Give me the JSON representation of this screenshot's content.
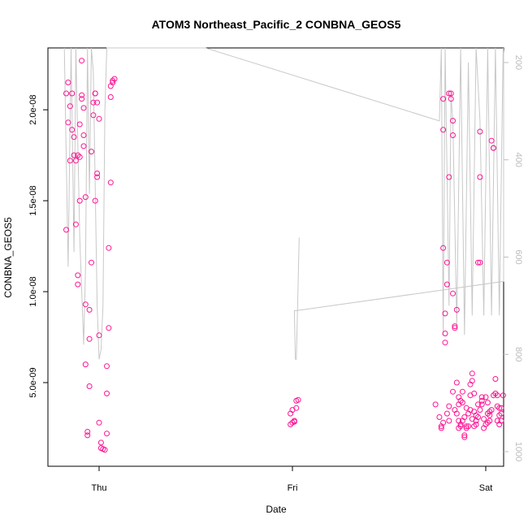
{
  "chart_data": {
    "type": "scatter",
    "title": "ATOM3 Northeast_Pacific_2 CONBNA_GEOS5",
    "xlabel": "Date",
    "ylabel": "CONBNA_GEOS5",
    "x_ticks": [
      "Thu",
      "Fri",
      "Sat"
    ],
    "y_ticks": [
      "5.0e-09",
      "1.0e-08",
      "1.5e-08",
      "2.0e-08"
    ],
    "y_tick_values": [
      5e-09,
      1e-08,
      1.5e-08,
      2e-08
    ],
    "ylim": [
      4e-10,
      2.34e-08
    ],
    "right_axis_ticks": [
      "200",
      "400",
      "600",
      "800",
      "1000"
    ],
    "right_axis_values": [
      200,
      400,
      600,
      800,
      1000
    ],
    "right_axis_range_inverted": [
      1030,
      170
    ],
    "grid": false,
    "series": [
      {
        "kind": "points",
        "color": "#ff1493",
        "points": [
          [
            -0.17,
            13.4
          ],
          [
            -0.17,
            20.9
          ],
          [
            -0.16,
            21.5
          ],
          [
            -0.16,
            19.3
          ],
          [
            -0.15,
            20.2
          ],
          [
            -0.15,
            17.2
          ],
          [
            -0.14,
            20.9
          ],
          [
            -0.14,
            18.9
          ],
          [
            -0.13,
            18.5
          ],
          [
            -0.13,
            17.5
          ],
          [
            -0.12,
            17.2
          ],
          [
            -0.12,
            13.7
          ],
          [
            -0.11,
            17.5
          ],
          [
            -0.11,
            10.9
          ],
          [
            -0.11,
            10.4
          ],
          [
            -0.1,
            15.0
          ],
          [
            -0.1,
            17.4
          ],
          [
            -0.1,
            19.2
          ],
          [
            -0.09,
            20.6
          ],
          [
            -0.09,
            20.8
          ],
          [
            -0.09,
            22.7
          ],
          [
            -0.08,
            20.1
          ],
          [
            -0.08,
            18.6
          ],
          [
            -0.08,
            18.0
          ],
          [
            -0.07,
            15.2
          ],
          [
            -0.07,
            9.3
          ],
          [
            -0.07,
            6.0
          ],
          [
            -0.06,
            2.3
          ],
          [
            -0.06,
            2.1
          ],
          [
            -0.05,
            4.8
          ],
          [
            -0.05,
            7.4
          ],
          [
            -0.05,
            9.0
          ],
          [
            -0.04,
            11.6
          ],
          [
            -0.04,
            17.7
          ],
          [
            -0.03,
            19.7
          ],
          [
            -0.03,
            20.4
          ],
          [
            -0.02,
            20.9
          ],
          [
            -0.02,
            20.9
          ],
          [
            -0.02,
            15.0
          ],
          [
            -0.01,
            16.5
          ],
          [
            -0.01,
            16.3
          ],
          [
            -0.01,
            20.4
          ],
          [
            0.0,
            19.5
          ],
          [
            0.0,
            7.6
          ],
          [
            0.0,
            2.8
          ],
          [
            0.01,
            1.7
          ],
          [
            0.01,
            1.4
          ],
          [
            0.02,
            1.35
          ],
          [
            0.03,
            1.3
          ],
          [
            0.04,
            2.2
          ],
          [
            0.04,
            4.4
          ],
          [
            0.04,
            5.9
          ],
          [
            0.05,
            8.0
          ],
          [
            0.05,
            12.4
          ],
          [
            0.06,
            16.0
          ],
          [
            0.06,
            20.7
          ],
          [
            0.06,
            21.3
          ],
          [
            0.07,
            21.6
          ],
          [
            0.07,
            21.5
          ],
          [
            0.08,
            21.7
          ],
          [
            0.99,
            2.7
          ],
          [
            0.99,
            3.3
          ],
          [
            1.0,
            3.5
          ],
          [
            1.0,
            2.8
          ],
          [
            1.01,
            2.9
          ],
          [
            1.01,
            2.85
          ],
          [
            1.02,
            3.6
          ],
          [
            1.02,
            4.0
          ],
          [
            1.03,
            4.05
          ],
          [
            1.78,
            20.6
          ],
          [
            1.78,
            12.4
          ],
          [
            1.78,
            18.9
          ],
          [
            1.79,
            7.2
          ],
          [
            1.79,
            7.7
          ],
          [
            1.79,
            8.8
          ],
          [
            1.8,
            10.4
          ],
          [
            1.8,
            11.6
          ],
          [
            1.81,
            16.3
          ],
          [
            1.81,
            20.9
          ],
          [
            1.82,
            20.6
          ],
          [
            1.82,
            20.9
          ],
          [
            1.83,
            19.4
          ],
          [
            1.83,
            18.6
          ],
          [
            1.83,
            9.9
          ],
          [
            1.84,
            8.0
          ],
          [
            1.84,
            8.1
          ],
          [
            1.85,
            9.0
          ],
          [
            1.85,
            5.0
          ],
          [
            1.86,
            3.8
          ],
          [
            1.86,
            2.9
          ],
          [
            1.86,
            2.5
          ],
          [
            1.87,
            2.7
          ],
          [
            1.87,
            2.6
          ],
          [
            1.88,
            4.5
          ],
          [
            1.88,
            2.9
          ],
          [
            1.89,
            2.1
          ],
          [
            1.89,
            2.0
          ],
          [
            1.9,
            2.6
          ],
          [
            1.9,
            2.5
          ],
          [
            1.91,
            2.6
          ],
          [
            1.91,
            3.3
          ],
          [
            1.92,
            4.9
          ],
          [
            1.92,
            4.3
          ],
          [
            1.93,
            5.1
          ],
          [
            1.93,
            5.5
          ],
          [
            1.94,
            3.4
          ],
          [
            1.94,
            2.6
          ],
          [
            1.95,
            2.7
          ],
          [
            1.95,
            2.9
          ],
          [
            1.96,
            3.8
          ],
          [
            1.96,
            11.6
          ],
          [
            1.97,
            11.6
          ],
          [
            1.97,
            16.3
          ],
          [
            1.97,
            18.8
          ],
          [
            1.98,
            4.0
          ],
          [
            1.98,
            4.2
          ],
          [
            1.99,
            3.0
          ],
          [
            2.0,
            2.7
          ],
          [
            2.01,
            2.8
          ],
          [
            2.01,
            3.3
          ],
          [
            2.02,
            3.4
          ],
          [
            2.02,
            2.9
          ],
          [
            2.03,
            18.3
          ],
          [
            2.04,
            17.9
          ],
          [
            2.04,
            17.9
          ],
          [
            2.05,
            4.4
          ],
          [
            2.05,
            5.2
          ],
          [
            2.06,
            4.3
          ],
          [
            2.06,
            3.7
          ],
          [
            2.07,
            3.6
          ],
          [
            2.07,
            3.2
          ],
          [
            2.07,
            2.7
          ],
          [
            2.08,
            2.9
          ],
          [
            2.08,
            3.6
          ],
          [
            2.09,
            4.3
          ],
          [
            1.74,
            3.8
          ],
          [
            1.76,
            3.1
          ],
          [
            1.77,
            2.5
          ],
          [
            1.77,
            2.6
          ],
          [
            1.78,
            2.8
          ],
          [
            1.8,
            3.3
          ],
          [
            1.81,
            2.9
          ],
          [
            1.81,
            3.7
          ],
          [
            1.83,
            4.5
          ],
          [
            1.84,
            3.5
          ],
          [
            1.85,
            3.3
          ],
          [
            1.86,
            4.2
          ],
          [
            1.87,
            4.0
          ],
          [
            1.88,
            3.9
          ],
          [
            1.89,
            3.1
          ],
          [
            1.9,
            3.6
          ],
          [
            1.92,
            3.5
          ],
          [
            1.93,
            3.0
          ],
          [
            1.94,
            4.4
          ],
          [
            1.95,
            3.2
          ],
          [
            1.96,
            3.1
          ],
          [
            1.97,
            3.5
          ],
          [
            1.98,
            3.8
          ],
          [
            1.99,
            2.5
          ],
          [
            2.0,
            4.2
          ],
          [
            2.01,
            3.9
          ],
          [
            2.02,
            3.2
          ],
          [
            2.03,
            3.5
          ],
          [
            2.04,
            4.3
          ],
          [
            2.06,
            2.9
          ],
          [
            2.08,
            3.3
          ]
        ]
      },
      {
        "kind": "line",
        "axis": "right",
        "color": "#c8c8c8",
        "points": [
          [
            -0.18,
            130
          ],
          [
            -0.16,
            620
          ],
          [
            -0.145,
            140
          ],
          [
            -0.13,
            590
          ],
          [
            -0.12,
            140
          ],
          [
            -0.1,
            560
          ],
          [
            -0.08,
            780
          ],
          [
            -0.07,
            620
          ],
          [
            -0.06,
            130
          ],
          [
            -0.05,
            470
          ],
          [
            -0.04,
            130
          ],
          [
            -0.03,
            220
          ],
          [
            -0.01,
            700
          ],
          [
            0.0,
            810
          ],
          [
            0.01,
            790
          ],
          [
            0.02,
            700
          ],
          [
            0.03,
            300
          ],
          [
            0.04,
            130
          ],
          [
            0.07,
            130
          ],
          [
            0.09,
            150
          ],
          [
            0.55,
            110
          ],
          [
            1.76,
            320
          ],
          [
            1.77,
            170
          ],
          [
            1.78,
            760
          ],
          [
            1.79,
            160
          ],
          [
            1.81,
            700
          ],
          [
            1.82,
            270
          ],
          [
            1.83,
            320
          ],
          [
            1.85,
            740
          ],
          [
            1.87,
            130
          ],
          [
            1.89,
            760
          ],
          [
            1.91,
            200
          ],
          [
            1.93,
            720
          ],
          [
            1.95,
            110
          ],
          [
            1.97,
            320
          ],
          [
            1.99,
            720
          ],
          [
            2.01,
            100
          ],
          [
            2.03,
            720
          ],
          [
            2.05,
            130
          ],
          [
            2.07,
            720
          ],
          [
            2.09,
            160
          ],
          [
            2.1,
            180
          ],
          [
            2.1,
            650
          ],
          [
            1.02,
            710
          ],
          [
            1.01,
            710
          ],
          [
            1.015,
            810
          ],
          [
            1.02,
            810
          ],
          [
            1.03,
            650
          ],
          [
            1.035,
            560
          ]
        ]
      }
    ]
  }
}
